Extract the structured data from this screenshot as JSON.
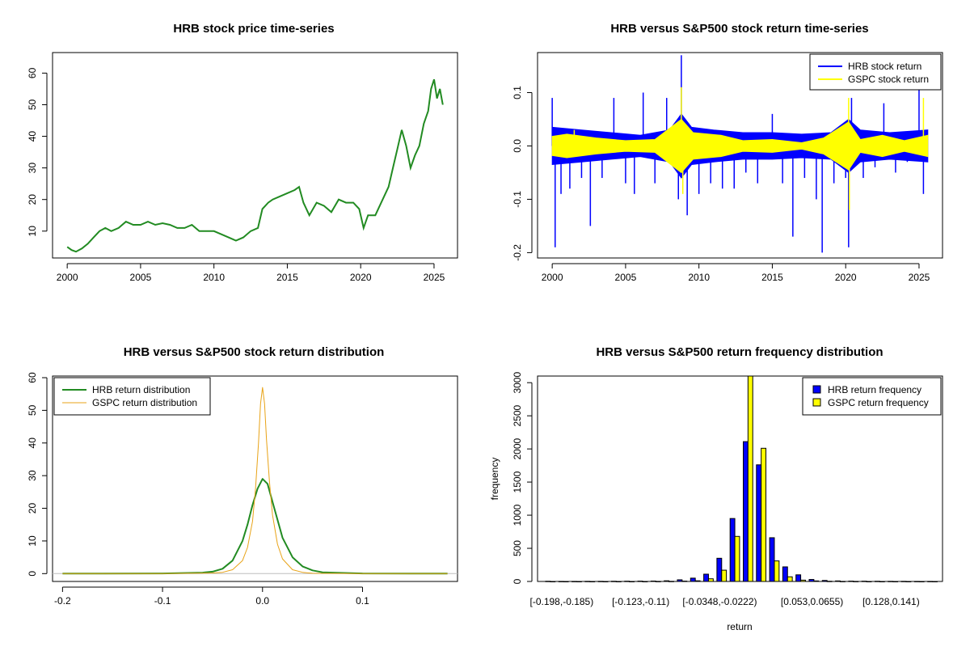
{
  "chart_data": [
    {
      "id": "price",
      "type": "line",
      "title": "HRB stock price time-series",
      "xlabel": "",
      "ylabel": "",
      "xlim": [
        1999.0,
        2026.6
      ],
      "ylim": [
        1.5,
        66.5
      ],
      "x_ticks": [
        2000,
        2005,
        2010,
        2015,
        2020,
        2025
      ],
      "x_tick_labels": [
        "2000",
        "2005",
        "2010",
        "2015",
        "2020",
        "2025"
      ],
      "y_ticks": [
        10,
        20,
        30,
        40,
        50,
        60
      ],
      "y_tick_labels": [
        "10",
        "20",
        "30",
        "40",
        "50",
        "60"
      ],
      "grid": false,
      "series": [
        {
          "color": "#228B22",
          "x": [
            2000.0,
            2000.3,
            2000.6,
            2001.0,
            2001.4,
            2001.8,
            2002.2,
            2002.6,
            2003.0,
            2003.5,
            2004.0,
            2004.5,
            2005.0,
            2005.5,
            2006.0,
            2006.5,
            2007.0,
            2007.5,
            2008.0,
            2008.5,
            2009.0,
            2009.5,
            2010.0,
            2010.5,
            2011.0,
            2011.5,
            2012.0,
            2012.5,
            2013.0,
            2013.3,
            2013.7,
            2014.0,
            2014.5,
            2015.0,
            2015.5,
            2015.8,
            2016.1,
            2016.5,
            2017.0,
            2017.5,
            2018.0,
            2018.5,
            2019.0,
            2019.5,
            2019.9,
            2020.2,
            2020.5,
            2021.0,
            2021.5,
            2021.9,
            2022.2,
            2022.5,
            2022.8,
            2023.1,
            2023.4,
            2023.7,
            2024.0,
            2024.3,
            2024.6,
            2024.8,
            2025.0,
            2025.2,
            2025.4,
            2025.6
          ],
          "y": [
            5,
            4,
            3.5,
            4.5,
            6,
            8,
            10,
            11,
            10,
            11,
            13,
            12,
            12,
            13,
            12,
            12.5,
            12,
            11,
            11,
            12,
            10,
            10,
            10,
            9,
            8,
            7,
            8,
            10,
            11,
            17,
            19,
            20,
            21,
            22,
            23,
            24,
            19,
            15,
            19,
            18,
            16,
            20,
            19,
            19,
            17,
            11,
            15,
            15,
            20,
            24,
            30,
            36,
            42,
            37,
            30,
            34,
            37,
            44,
            48,
            55,
            58,
            52,
            55,
            50
          ]
        }
      ]
    },
    {
      "id": "returns",
      "type": "line",
      "title": "HRB versus S&P500 stock return time-series",
      "xlabel": "",
      "ylabel": "",
      "xlim": [
        1999.0,
        2026.6
      ],
      "ylim": [
        -0.21,
        0.175
      ],
      "x_ticks": [
        2000,
        2005,
        2010,
        2015,
        2020,
        2025
      ],
      "x_tick_labels": [
        "2000",
        "2005",
        "2010",
        "2015",
        "2020",
        "2025"
      ],
      "y_ticks": [
        -0.2,
        -0.1,
        0.0,
        0.1
      ],
      "y_tick_labels": [
        "-0.2",
        "-0.1",
        "0.0",
        "0.1"
      ],
      "legend": {
        "position": "top-right",
        "entries": [
          "HRB stock return",
          "GSPC stock return"
        ]
      },
      "series": [
        {
          "name": "HRB stock return",
          "color": "#0000FF",
          "x": [
            2000.0,
            2000.2,
            2000.6,
            2001.2,
            2002.0,
            2002.6,
            2003.4,
            2004.2,
            2005.0,
            2005.6,
            2006.2,
            2007.0,
            2007.8,
            2008.6,
            2008.8,
            2009.2,
            2010.0,
            2010.8,
            2011.6,
            2012.4,
            2013.2,
            2014.0,
            2015.0,
            2015.7,
            2016.4,
            2017.2,
            2018.0,
            2018.4,
            2019.2,
            2020.0,
            2020.2,
            2020.4,
            2021.2,
            2022.0,
            2022.6,
            2023.4,
            2024.2,
            2025.0,
            2025.3
          ],
          "y": [
            0.09,
            -0.19,
            -0.09,
            -0.08,
            -0.06,
            -0.15,
            -0.06,
            0.09,
            -0.07,
            -0.09,
            0.1,
            -0.07,
            0.09,
            -0.1,
            0.17,
            -0.13,
            -0.09,
            -0.07,
            -0.08,
            -0.08,
            -0.05,
            -0.07,
            0.06,
            -0.07,
            -0.17,
            -0.06,
            -0.1,
            -0.2,
            -0.07,
            -0.06,
            -0.19,
            0.09,
            -0.06,
            -0.04,
            0.08,
            -0.05,
            -0.03,
            0.12,
            -0.09
          ],
          "band": {
            "x": [
              2000.0,
              2002.0,
              2004.0,
              2006.0,
              2008.0,
              2008.8,
              2009.5,
              2011.0,
              2013.0,
              2015.0,
              2017.0,
              2019.0,
              2020.2,
              2021.0,
              2023.0,
              2025.6
            ],
            "hi": [
              0.035,
              0.03,
              0.025,
              0.02,
              0.03,
              0.06,
              0.035,
              0.03,
              0.025,
              0.025,
              0.022,
              0.025,
              0.05,
              0.03,
              0.025,
              0.03
            ],
            "lo": [
              -0.035,
              -0.03,
              -0.025,
              -0.02,
              -0.03,
              -0.06,
              -0.035,
              -0.03,
              -0.025,
              -0.025,
              -0.022,
              -0.025,
              -0.05,
              -0.03,
              -0.025,
              -0.03
            ]
          }
        },
        {
          "name": "GSPC stock return",
          "color": "#FFFF00",
          "x": [
            2001.5,
            2008.8,
            2008.9,
            2020.2,
            2020.25,
            2025.3
          ],
          "y": [
            0.03,
            0.11,
            -0.09,
            0.09,
            -0.12,
            0.09
          ],
          "band": {
            "x": [
              2000.0,
              2001.0,
              2003.0,
              2005.0,
              2007.0,
              2008.8,
              2009.6,
              2011.5,
              2013.0,
              2015.0,
              2017.0,
              2018.5,
              2020.2,
              2021.0,
              2022.5,
              2024.0,
              2025.6
            ],
            "hi": [
              0.018,
              0.022,
              0.015,
              0.01,
              0.012,
              0.05,
              0.025,
              0.02,
              0.01,
              0.012,
              0.006,
              0.015,
              0.045,
              0.012,
              0.02,
              0.01,
              0.02
            ],
            "lo": [
              -0.018,
              -0.022,
              -0.015,
              -0.01,
              -0.012,
              -0.05,
              -0.025,
              -0.02,
              -0.01,
              -0.012,
              -0.006,
              -0.015,
              -0.045,
              -0.012,
              -0.02,
              -0.01,
              -0.02
            ]
          }
        }
      ]
    },
    {
      "id": "density",
      "type": "line",
      "title": "HRB versus S&P500 stock return distribution",
      "xlabel": "",
      "ylabel": "",
      "xlim": [
        -0.21,
        0.195
      ],
      "ylim": [
        -2.4,
        60.5
      ],
      "x_ticks": [
        -0.2,
        -0.1,
        0.0,
        0.1
      ],
      "x_tick_labels": [
        "-0.2",
        "-0.1",
        "0.0",
        "0.1"
      ],
      "y_ticks": [
        0,
        10,
        20,
        30,
        40,
        50,
        60
      ],
      "y_tick_labels": [
        "0",
        "10",
        "20",
        "30",
        "40",
        "50",
        "60"
      ],
      "legend": {
        "position": "top-left",
        "entries": [
          "HRB return distribution",
          "GSPC return distribution"
        ]
      },
      "series": [
        {
          "name": "HRB return distribution",
          "color": "#228B22",
          "x": [
            -0.2,
            -0.1,
            -0.06,
            -0.05,
            -0.04,
            -0.03,
            -0.02,
            -0.015,
            -0.01,
            -0.005,
            0.0,
            0.005,
            0.01,
            0.015,
            0.02,
            0.03,
            0.04,
            0.05,
            0.06,
            0.1,
            0.185
          ],
          "y": [
            0,
            0.05,
            0.3,
            0.6,
            1.5,
            4,
            10,
            15,
            21,
            26,
            29,
            27.5,
            22,
            16.5,
            11,
            5,
            2.2,
            1,
            0.4,
            0.05,
            0
          ]
        },
        {
          "name": "GSPC return distribution",
          "color": "#E8A317",
          "x": [
            -0.2,
            -0.1,
            -0.05,
            -0.04,
            -0.03,
            -0.02,
            -0.015,
            -0.01,
            -0.007,
            -0.004,
            -0.002,
            0.0,
            0.002,
            0.004,
            0.007,
            0.01,
            0.015,
            0.02,
            0.03,
            0.04,
            0.05,
            0.1,
            0.185
          ],
          "y": [
            0,
            0,
            0.2,
            0.4,
            1.2,
            4,
            8,
            16,
            26,
            40,
            52,
            57,
            52,
            41,
            28,
            18,
            9,
            4.5,
            1.2,
            0.4,
            0.1,
            0,
            0
          ]
        }
      ]
    },
    {
      "id": "frequency",
      "type": "bar",
      "title": "HRB versus S&P500 return frequency distribution",
      "xlabel": "return",
      "ylabel": "frequency",
      "ylim": [
        0,
        3100
      ],
      "y_ticks": [
        0,
        500,
        1000,
        1500,
        2000,
        2500,
        3000
      ],
      "y_tick_labels": [
        "0",
        "500",
        "1000",
        "1500",
        "2000",
        "2500",
        "3000"
      ],
      "bin_count": 30,
      "x_tick_labels": [
        {
          "bin": 1,
          "label": "[-0.198,-0.185)"
        },
        {
          "bin": 7,
          "label": "[-0.123,-0.11)"
        },
        {
          "bin": 13,
          "label": "[-0.0348,-0.0222)"
        },
        {
          "bin": 20,
          "label": "[0.053,0.0655)"
        },
        {
          "bin": 26,
          "label": "[0.128,0.141)"
        }
      ],
      "legend": {
        "position": "top-right",
        "entries": [
          "HRB return frequency",
          "GSPC return frequency"
        ]
      },
      "series": [
        {
          "name": "HRB return frequency",
          "color": "#0000FF",
          "values": [
            3,
            1,
            1,
            2,
            2,
            3,
            4,
            5,
            6,
            10,
            25,
            50,
            110,
            350,
            950,
            2110,
            1760,
            660,
            220,
            100,
            30,
            15,
            8,
            5,
            4,
            3,
            2,
            2,
            1,
            1
          ]
        },
        {
          "name": "GSPC return frequency",
          "color": "#FFFF00",
          "values": [
            0,
            0,
            0,
            0,
            0,
            0,
            0,
            0,
            1,
            2,
            5,
            10,
            40,
            170,
            680,
            3100,
            2010,
            310,
            70,
            20,
            8,
            3,
            1,
            1,
            0,
            0,
            0,
            0,
            0,
            0
          ]
        }
      ]
    }
  ]
}
